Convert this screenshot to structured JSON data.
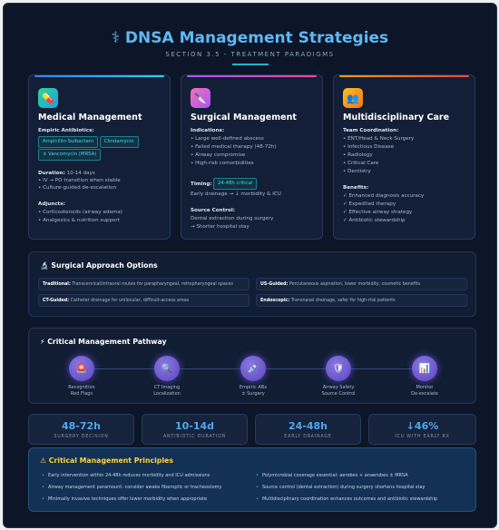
{
  "header": {
    "title": "⚕ DNSA Management Strategies",
    "subtitle": "SECTION 3.5 - TREATMENT PARADIGMS"
  },
  "cards": {
    "medical": {
      "icon": "pill-icon",
      "title": "Medical Management",
      "antibiotics_label": "Empiric Antibiotics:",
      "chips": [
        "Ampicillin-Sulbactam",
        "Clindamycin",
        "± Vancomycin (MRSA)"
      ],
      "duration_label": "Duration:",
      "duration_value": "10-14 days",
      "duration_items": [
        "• IV → PO transition when stable",
        "• Culture-guided de-escalation"
      ],
      "adjuncts_label": "Adjuncts:",
      "adjuncts_items": [
        "• Corticosteroids (airway edema)",
        "• Analgesics & nutrition support"
      ]
    },
    "surgical": {
      "icon": "scalpel-icon",
      "title": "Surgical Management",
      "indications_label": "Indications:",
      "indications": [
        "• Large well-defined abscess",
        "• Failed medical therapy (48-72h)",
        "• Airway compromise",
        "• High-risk comorbidities"
      ],
      "timing_label": "Timing:",
      "timing_chip": "24-48h critical",
      "timing_text": "Early drainage → ↓ morbidity & ICU",
      "source_label": "Source Control:",
      "source_items": [
        "Dental extraction during surgery",
        "→ Shorter hospital stay"
      ]
    },
    "multi": {
      "icon": "team-icon",
      "title": "Multidisciplinary Care",
      "team_label": "Team Coordination:",
      "team_items": [
        "• ENT/Head & Neck Surgery",
        "• Infectious Disease",
        "• Radiology",
        "• Critical Care",
        "• Dentistry"
      ],
      "benefits_label": "Benefits:",
      "benefits_items": [
        "✓ Enhanced diagnosis accuracy",
        "✓ Expedited therapy",
        "✓ Effective airway strategy",
        "✓ Antibiotic stewardship"
      ]
    }
  },
  "surgical_options": {
    "title": "🔬 Surgical Approach Options",
    "items": [
      {
        "name": "Traditional:",
        "desc": "Transcervical/intraoral routes for parapharyngeal, retropharyngeal spaces"
      },
      {
        "name": "US-Guided:",
        "desc": "Percutaneous aspiration, lower morbidity, cosmetic benefits"
      },
      {
        "name": "CT-Guided:",
        "desc": "Catheter drainage for unilocular, difficult-access areas"
      },
      {
        "name": "Endoscopic:",
        "desc": "Transnasal drainage, safer for high-risk patients"
      }
    ]
  },
  "pathway": {
    "title": "⚡ Critical Management Pathway",
    "steps": [
      {
        "icon": "alarm-icon",
        "glyph": "🚨",
        "line1": "Recognition",
        "line2": "Red Flags"
      },
      {
        "icon": "magnifier-icon",
        "glyph": "🔍",
        "line1": "CT Imaging",
        "line2": "Localization"
      },
      {
        "icon": "syringe-icon",
        "glyph": "💉",
        "line1": "Empiric ABx",
        "line2": "± Surgery"
      },
      {
        "icon": "shield-icon",
        "glyph": "🛡",
        "line1": "Airway Safety",
        "line2": "Source Control"
      },
      {
        "icon": "monitor-chart-icon",
        "glyph": "📊",
        "line1": "Monitor",
        "line2": "De-escalate"
      }
    ]
  },
  "stats": [
    {
      "value": "48-72h",
      "label": "SURGERY DECISION"
    },
    {
      "value": "10-14d",
      "label": "ANTIBIOTIC DURATION"
    },
    {
      "value": "24-48h",
      "label": "EARLY DRAINAGE"
    },
    {
      "value": "↓46%",
      "label": "ICU WITH EARLY RX"
    }
  ],
  "principles": {
    "title": "⚠ Critical Management Principles",
    "left": [
      "Early intervention within 24-48h reduces morbidity and ICU admissions",
      "Airway management paramount: consider awake fiberoptic or tracheostomy",
      "Minimally invasive techniques offer lower morbidity when appropriate"
    ],
    "right": [
      "Polymicrobial coverage essential: aerobes + anaerobes ± MRSA",
      "Source control (dental extraction) during surgery shortens hospital stay",
      "Multidisciplinary coordination enhances outcomes and antibiotic stewardship"
    ]
  },
  "colors": {
    "background": "#0c1628",
    "accent_blue": "#5fb8f2",
    "accent_cyan": "#52d3e8",
    "warning_yellow": "#ffd43b",
    "step_purple": "#6b55d0"
  }
}
